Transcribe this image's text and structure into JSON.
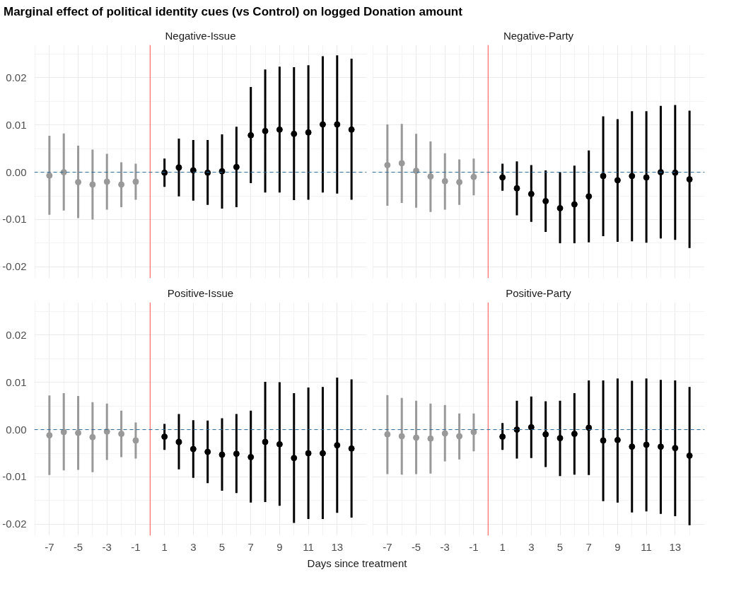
{
  "chart_data": [
    {
      "type": "scatter",
      "title": "Marginal effect of political identity cues (vs Control) on logged Donation amount",
      "subtitle": "Negative-Issue",
      "marker": "circle",
      "grid": true,
      "tick_labels": "y",
      "xlim": [
        -8.05,
        15.05
      ],
      "xticks": [
        -7,
        -5,
        -3,
        -1,
        1,
        3,
        5,
        7,
        9,
        11,
        13
      ],
      "ylim": [
        -0.0224,
        0.0269
      ],
      "yticks": [
        -0.02,
        -0.01,
        {
          "value": 0,
          "label": "0.00"
        },
        0.01,
        0.02
      ],
      "ref_lines": [
        {
          "axis": "x",
          "value": 0,
          "color": "#ff4d4d",
          "line_style": "solid"
        },
        {
          "axis": "y",
          "value": 0,
          "color": "#2b6a99",
          "line_style": "dashed"
        }
      ],
      "series": [
        {
          "color": "#999999",
          "x": [
            -7,
            -6,
            -5,
            -4,
            -3,
            -2,
            -1
          ],
          "values": [
            -0.0007,
            0.0,
            -0.0021,
            -0.0026,
            -0.002,
            -0.0026,
            -0.002
          ],
          "errors": [
            [
              -0.009,
              0.0077
            ],
            [
              -0.0081,
              0.0082
            ],
            [
              -0.0097,
              0.0056
            ],
            [
              -0.01,
              0.0048
            ],
            [
              -0.0079,
              0.0039
            ],
            [
              -0.0074,
              0.0021
            ],
            [
              -0.0058,
              0.0018
            ]
          ]
        },
        {
          "color": "#000000",
          "x": [
            1,
            2,
            3,
            4,
            5,
            6,
            7,
            8,
            9,
            10,
            11,
            12,
            13,
            14
          ],
          "values": [
            -0.0001,
            0.001,
            0.0004,
            -0.0001,
            0.0002,
            0.0011,
            0.0078,
            0.0087,
            0.009,
            0.0081,
            0.0084,
            0.0101,
            0.0101,
            0.009
          ],
          "errors": [
            [
              -0.0031,
              0.0029
            ],
            [
              -0.0051,
              0.0071
            ],
            [
              -0.006,
              0.0068
            ],
            [
              -0.0069,
              0.0068
            ],
            [
              -0.0077,
              0.008
            ],
            [
              -0.0074,
              0.0096
            ],
            [
              -0.0023,
              0.018
            ],
            [
              -0.0043,
              0.0217
            ],
            [
              -0.0043,
              0.0223
            ],
            [
              -0.0059,
              0.0222
            ],
            [
              -0.0058,
              0.0226
            ],
            [
              -0.0043,
              0.0245
            ],
            [
              -0.0045,
              0.0247
            ],
            [
              -0.0058,
              0.024
            ]
          ]
        }
      ]
    },
    {
      "type": "scatter",
      "subtitle": "Negative-Party",
      "marker": "circle",
      "grid": true,
      "tick_labels": false,
      "xlim": [
        -8.05,
        15.05
      ],
      "xticks": [
        -7,
        -5,
        -3,
        -1,
        1,
        3,
        5,
        7,
        9,
        11,
        13
      ],
      "ylim": [
        -0.0224,
        0.0269
      ],
      "yticks": [
        -0.02,
        -0.01,
        0,
        0.01,
        0.02
      ],
      "ref_lines": [
        {
          "axis": "x",
          "value": 0,
          "color": "#ff4d4d",
          "line_style": "solid"
        },
        {
          "axis": "y",
          "value": 0,
          "color": "#2b6a99",
          "line_style": "dashed"
        }
      ],
      "series": [
        {
          "color": "#999999",
          "x": [
            -7,
            -6,
            -5,
            -4,
            -3,
            -2,
            -1
          ],
          "values": [
            0.0015,
            0.0019,
            0.0003,
            -0.0009,
            -0.0019,
            -0.0021,
            -0.001
          ],
          "errors": [
            [
              -0.0071,
              0.0101
            ],
            [
              -0.0065,
              0.0102
            ],
            [
              -0.0075,
              0.0081
            ],
            [
              -0.0084,
              0.0065
            ],
            [
              -0.0079,
              0.004
            ],
            [
              -0.0069,
              0.0027
            ],
            [
              -0.0049,
              0.0029
            ]
          ]
        },
        {
          "color": "#000000",
          "x": [
            1,
            2,
            3,
            4,
            5,
            6,
            7,
            8,
            9,
            10,
            11,
            12,
            13,
            14
          ],
          "values": [
            -0.0011,
            -0.0034,
            -0.0046,
            -0.0061,
            -0.0076,
            -0.0068,
            -0.0051,
            -0.0008,
            -0.0017,
            -0.0008,
            -0.0011,
            0.0,
            -0.0001,
            -0.0015
          ],
          "errors": [
            [
              -0.0039,
              0.0018
            ],
            [
              -0.0091,
              0.0023
            ],
            [
              -0.0105,
              0.0015
            ],
            [
              -0.0126,
              0.0004
            ],
            [
              -0.015,
              0.0
            ],
            [
              -0.015,
              0.0014
            ],
            [
              -0.0148,
              0.0046
            ],
            [
              -0.0135,
              0.0118
            ],
            [
              -0.0147,
              0.0112
            ],
            [
              -0.0146,
              0.0129
            ],
            [
              -0.0149,
              0.0129
            ],
            [
              -0.014,
              0.014
            ],
            [
              -0.0143,
              0.0142
            ],
            [
              -0.016,
              0.013
            ]
          ]
        }
      ]
    },
    {
      "type": "scatter",
      "subtitle": "Positive-Issue",
      "xlabel": "Days since treatment",
      "marker": "circle",
      "grid": true,
      "xlim": [
        -8.05,
        15.05
      ],
      "xticks": [
        -7,
        -5,
        -3,
        -1,
        1,
        3,
        5,
        7,
        9,
        11,
        13
      ],
      "ylim": [
        -0.0224,
        0.0269
      ],
      "yticks": [
        -0.02,
        -0.01,
        {
          "value": 0,
          "label": "0.00"
        },
        0.01,
        0.02
      ],
      "ref_lines": [
        {
          "axis": "x",
          "value": 0,
          "color": "#ff4d4d",
          "line_style": "solid"
        },
        {
          "axis": "y",
          "value": 0,
          "color": "#2b6a99",
          "line_style": "dashed"
        }
      ],
      "series": [
        {
          "color": "#999999",
          "x": [
            -7,
            -6,
            -5,
            -4,
            -3,
            -2,
            -1
          ],
          "values": [
            -0.0012,
            -0.0005,
            -0.0007,
            -0.0016,
            -0.0004,
            -0.0009,
            -0.0023
          ],
          "errors": [
            [
              -0.0096,
              0.0072
            ],
            [
              -0.0086,
              0.0077
            ],
            [
              -0.0085,
              0.0071
            ],
            [
              -0.009,
              0.0058
            ],
            [
              -0.0064,
              0.0055
            ],
            [
              -0.0058,
              0.004
            ],
            [
              -0.0061,
              0.0015
            ]
          ]
        },
        {
          "color": "#000000",
          "x": [
            1,
            2,
            3,
            4,
            5,
            6,
            7,
            8,
            9,
            10,
            11,
            12,
            13,
            14
          ],
          "values": [
            -0.0015,
            -0.0026,
            -0.0041,
            -0.0047,
            -0.0053,
            -0.0051,
            -0.0058,
            -0.0026,
            -0.0031,
            -0.006,
            -0.005,
            -0.005,
            -0.0033,
            -0.004
          ],
          "errors": [
            [
              -0.0043,
              0.0012
            ],
            [
              -0.0084,
              0.0033
            ],
            [
              -0.0102,
              0.002
            ],
            [
              -0.0113,
              0.0019
            ],
            [
              -0.0129,
              0.0024
            ],
            [
              -0.0134,
              0.0033
            ],
            [
              -0.0154,
              0.004
            ],
            [
              -0.0153,
              0.0101
            ],
            [
              -0.0161,
              0.01
            ],
            [
              -0.0197,
              0.0077
            ],
            [
              -0.0189,
              0.0089
            ],
            [
              -0.0189,
              0.009
            ],
            [
              -0.0176,
              0.011
            ],
            [
              -0.0186,
              0.0106
            ]
          ]
        }
      ]
    },
    {
      "type": "scatter",
      "subtitle": "Positive-Party",
      "marker": "circle",
      "grid": true,
      "tick_labels": "x",
      "xlim": [
        -8.05,
        15.05
      ],
      "xticks": [
        -7,
        -5,
        -3,
        -1,
        1,
        3,
        5,
        7,
        9,
        11,
        13
      ],
      "ylim": [
        -0.0224,
        0.0269
      ],
      "yticks": [
        -0.02,
        -0.01,
        0,
        0.01,
        0.02
      ],
      "ref_lines": [
        {
          "axis": "x",
          "value": 0,
          "color": "#ff4d4d",
          "line_style": "solid"
        },
        {
          "axis": "y",
          "value": 0,
          "color": "#2b6a99",
          "line_style": "dashed"
        }
      ],
      "series": [
        {
          "color": "#999999",
          "x": [
            -7,
            -6,
            -5,
            -4,
            -3,
            -2,
            -1
          ],
          "values": [
            -0.001,
            -0.0014,
            -0.0017,
            -0.0019,
            -0.0008,
            -0.0014,
            -0.0005
          ],
          "errors": [
            [
              -0.0094,
              0.0073
            ],
            [
              -0.0095,
              0.0067
            ],
            [
              -0.0094,
              0.0061
            ],
            [
              -0.0093,
              0.0055
            ],
            [
              -0.0067,
              0.0052
            ],
            [
              -0.0063,
              0.0034
            ],
            [
              -0.0046,
              0.0034
            ]
          ]
        },
        {
          "color": "#000000",
          "x": [
            1,
            2,
            3,
            4,
            5,
            6,
            7,
            8,
            9,
            10,
            11,
            12,
            13,
            14
          ],
          "values": [
            -0.0015,
            0.0,
            0.0005,
            -0.001,
            -0.0018,
            -0.0009,
            0.0004,
            -0.0023,
            -0.0022,
            -0.0036,
            -0.0032,
            -0.0036,
            -0.0039,
            -0.0055
          ],
          "errors": [
            [
              -0.0043,
              0.0014
            ],
            [
              -0.0061,
              0.0061
            ],
            [
              -0.006,
              0.007
            ],
            [
              -0.0079,
              0.006
            ],
            [
              -0.0098,
              0.0061
            ],
            [
              -0.0095,
              0.0077
            ],
            [
              -0.0096,
              0.0104
            ],
            [
              -0.0151,
              0.0104
            ],
            [
              -0.0154,
              0.0108
            ],
            [
              -0.0175,
              0.0103
            ],
            [
              -0.0173,
              0.0108
            ],
            [
              -0.0178,
              0.0105
            ],
            [
              -0.0183,
              0.0104
            ],
            [
              -0.0202,
              0.009
            ]
          ]
        }
      ]
    }
  ]
}
